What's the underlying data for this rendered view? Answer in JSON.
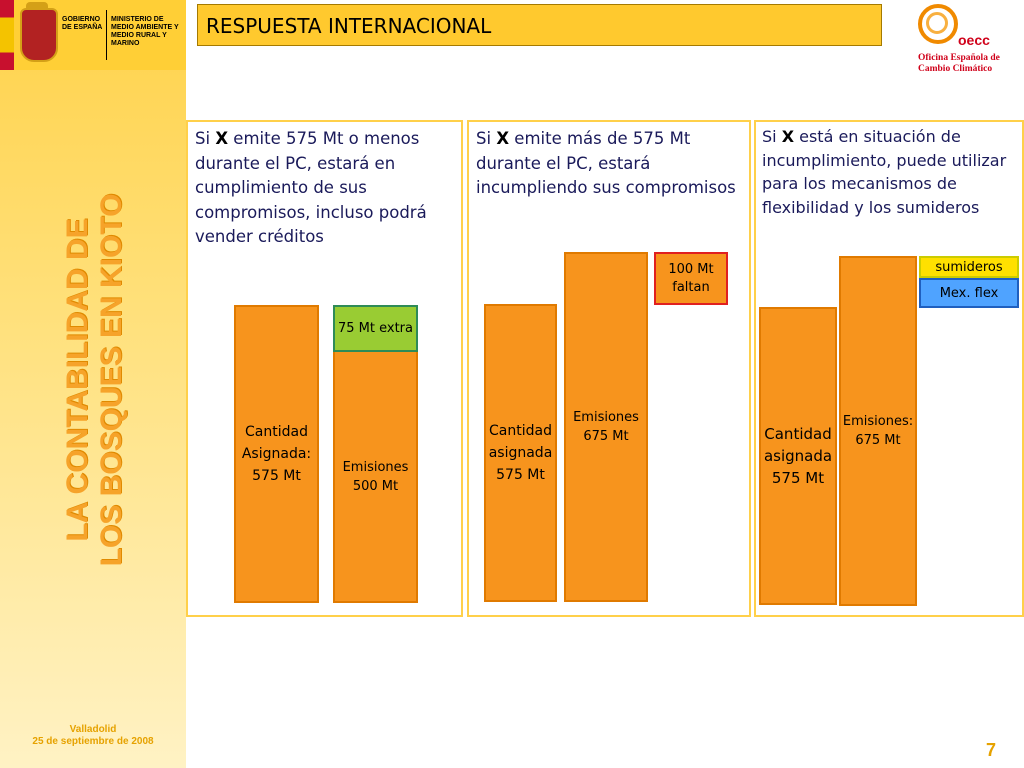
{
  "header": {
    "ministry_left": "GOBIERNO DE ESPAÑA",
    "ministry_right": "MINISTERIO DE MEDIO AMBIENTE Y MEDIO RURAL Y MARINO",
    "title": "RESPUESTA INTERNACIONAL",
    "oecc_name": "oecc",
    "oecc_sub": "Oficina Española de Cambio Climático"
  },
  "sidebar": {
    "vertical_title_line1": "LA CONTABILIDAD DE",
    "vertical_title_line2": "LOS BOSQUES EN KIOTO",
    "place": "Valladolid",
    "date": "25 de septiembre de 2008"
  },
  "panels": [
    {
      "text_pre": "Si ",
      "text_x": "X",
      "text_post": " emite 575 Mt o menos durante el PC, estará en cumplimiento de sus compromisos, incluso podrá vender créditos",
      "bar1": "Cantidad Asignada: 575 Mt",
      "bar2": "Emisiones 500 Mt",
      "extra_box": "75 Mt extra"
    },
    {
      "text_pre": "Si ",
      "text_x": "X",
      "text_post": " emite más de 575 Mt durante el PC, estará incumpliendo sus compromisos",
      "bar1": "Cantidad asignada 575 Mt",
      "bar2": "Emisiones 675 Mt",
      "extra_box": "100 Mt faltan"
    },
    {
      "text_pre": "Si ",
      "text_x": "X",
      "text_post": " está en situación de incumplimiento, puede utilizar para los mecanismos de flexibilidad y los sumideros",
      "bar1": "Cantidad asignada 575 Mt",
      "bar2": "Emisiones: 675 Mt",
      "box_sumideros": "sumideros",
      "box_flex": "Mex. flex"
    }
  ],
  "footer": {
    "page_number": "7"
  },
  "colors": {
    "accent_yellow": "#ffc92e",
    "bar_orange": "#f7941d",
    "extra_green": "#99cc33",
    "deficit_red": "#e02020",
    "sumideros_yellow": "#ffe000",
    "flex_blue": "#4fa3ff"
  }
}
